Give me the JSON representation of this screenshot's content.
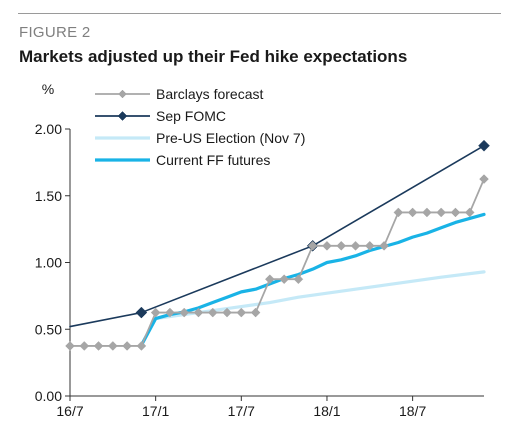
{
  "header": {
    "figure_label": "FIGURE 2",
    "title": "Markets adjusted up their Fed hike expectations"
  },
  "chart_data": {
    "type": "line",
    "ylabel": "%",
    "ylim": [
      0,
      2
    ],
    "yticks": [
      "0.00",
      "0.50",
      "1.00",
      "1.50",
      "2.00"
    ],
    "xlim": [
      0,
      29
    ],
    "xticks": [
      {
        "label": "16/7",
        "x": 0
      },
      {
        "label": "17/1",
        "x": 6
      },
      {
        "label": "17/7",
        "x": 12
      },
      {
        "label": "18/1",
        "x": 18
      },
      {
        "label": "18/7",
        "x": 24
      }
    ],
    "grid": false,
    "legend_position": "top-left",
    "series": [
      {
        "name": "Barclays forecast",
        "color": "#a6a6a6",
        "marker": "diamond",
        "points": [
          [
            0,
            0.375
          ],
          [
            1,
            0.375
          ],
          [
            2,
            0.375
          ],
          [
            3,
            0.375
          ],
          [
            4,
            0.375
          ],
          [
            5,
            0.375
          ],
          [
            6,
            0.625
          ],
          [
            7,
            0.625
          ],
          [
            8,
            0.625
          ],
          [
            9,
            0.625
          ],
          [
            10,
            0.625
          ],
          [
            11,
            0.625
          ],
          [
            12,
            0.625
          ],
          [
            13,
            0.625
          ],
          [
            14,
            0.875
          ],
          [
            15,
            0.875
          ],
          [
            16,
            0.875
          ],
          [
            17,
            1.125
          ],
          [
            18,
            1.125
          ],
          [
            19,
            1.125
          ],
          [
            20,
            1.125
          ],
          [
            21,
            1.125
          ],
          [
            22,
            1.125
          ],
          [
            23,
            1.375
          ],
          [
            24,
            1.375
          ],
          [
            25,
            1.375
          ],
          [
            26,
            1.375
          ],
          [
            27,
            1.375
          ],
          [
            28,
            1.375
          ],
          [
            29,
            1.625
          ]
        ]
      },
      {
        "name": "Sep FOMC",
        "color": "#1b3a5c",
        "marker": "diamond",
        "points": [
          [
            0,
            0.52
          ],
          [
            5,
            0.625
          ],
          [
            17,
            1.125
          ],
          [
            29,
            1.875
          ]
        ],
        "marked": [
          5,
          17,
          29
        ]
      },
      {
        "name": "Pre-US Election (Nov 7)",
        "color": "#c5e9f7",
        "marker": "none",
        "points": [
          [
            5,
            0.38
          ],
          [
            6,
            0.58
          ],
          [
            8,
            0.61
          ],
          [
            10,
            0.64
          ],
          [
            12,
            0.67
          ],
          [
            14,
            0.7
          ],
          [
            16,
            0.74
          ],
          [
            18,
            0.77
          ],
          [
            20,
            0.8
          ],
          [
            22,
            0.83
          ],
          [
            24,
            0.86
          ],
          [
            26,
            0.89
          ],
          [
            29,
            0.93
          ]
        ]
      },
      {
        "name": "Current FF futures",
        "color": "#19b3e6",
        "marker": "none",
        "points": [
          [
            5,
            0.38
          ],
          [
            6,
            0.58
          ],
          [
            7,
            0.61
          ],
          [
            8,
            0.63
          ],
          [
            9,
            0.66
          ],
          [
            10,
            0.7
          ],
          [
            11,
            0.74
          ],
          [
            12,
            0.78
          ],
          [
            13,
            0.8
          ],
          [
            14,
            0.84
          ],
          [
            15,
            0.88
          ],
          [
            16,
            0.91
          ],
          [
            17,
            0.95
          ],
          [
            18,
            1.0
          ],
          [
            19,
            1.02
          ],
          [
            20,
            1.05
          ],
          [
            21,
            1.09
          ],
          [
            22,
            1.12
          ],
          [
            23,
            1.15
          ],
          [
            24,
            1.19
          ],
          [
            25,
            1.22
          ],
          [
            26,
            1.26
          ],
          [
            27,
            1.3
          ],
          [
            28,
            1.33
          ],
          [
            29,
            1.36
          ]
        ]
      }
    ]
  }
}
